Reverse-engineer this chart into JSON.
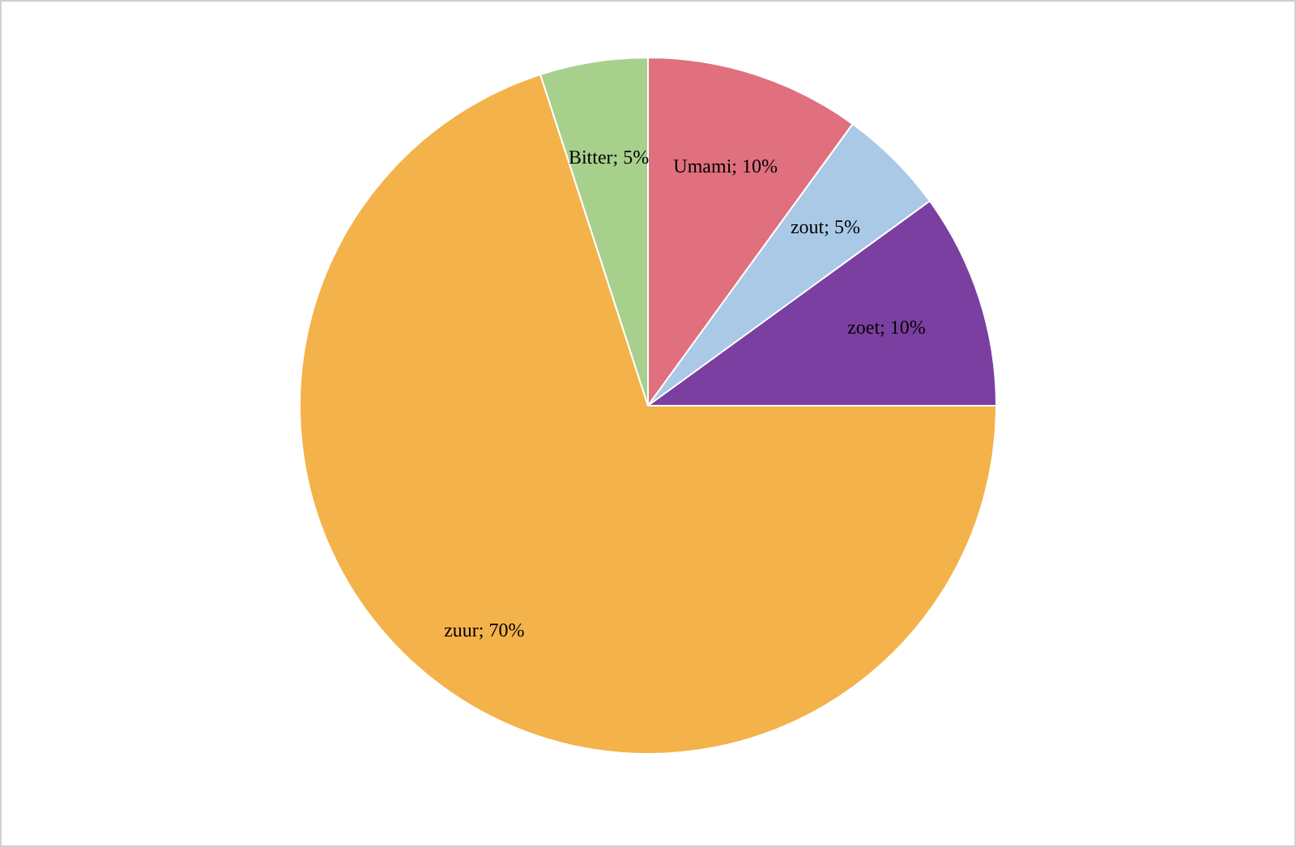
{
  "chart_data": {
    "type": "pie",
    "categories": [
      "Umami",
      "zout",
      "zoet",
      "zuur",
      "Bitter"
    ],
    "values": [
      10,
      5,
      10,
      70,
      5
    ],
    "colors": [
      "#e0707e",
      "#a9c9e6",
      "#7a3fa0",
      "#f4b24a",
      "#a8d08d"
    ],
    "value_labels": [
      "10%",
      "5%",
      "10%",
      "70%",
      "5%"
    ],
    "legend": false
  }
}
